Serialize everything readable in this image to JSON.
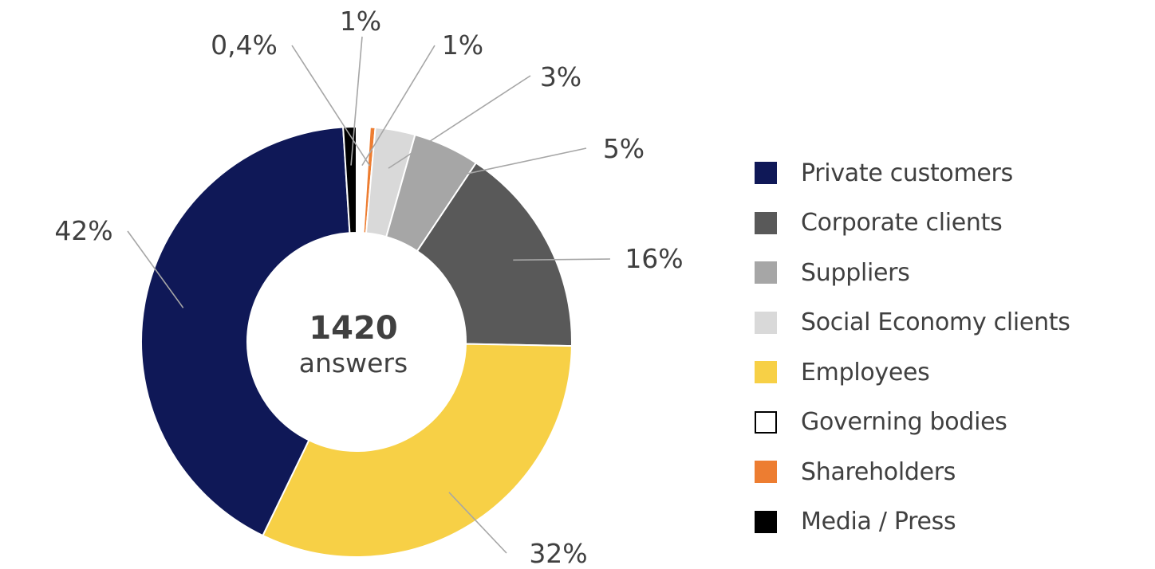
{
  "chart_data": {
    "type": "pie",
    "variant": "donut",
    "center_label": {
      "value": "1420",
      "caption": "answers"
    },
    "slices": [
      {
        "name": "Private customers",
        "value": 42,
        "label": "42%",
        "color": "#0f1857"
      },
      {
        "name": "Corporate clients",
        "value": 16,
        "label": "16%",
        "color": "#595959"
      },
      {
        "name": "Suppliers",
        "value": 5,
        "label": "5%",
        "color": "#a6a6a6"
      },
      {
        "name": "Social Economy clients",
        "value": 3,
        "label": "3%",
        "color": "#d9d9d9"
      },
      {
        "name": "Employees",
        "value": 32,
        "label": "32%",
        "color": "#f7d046"
      },
      {
        "name": "Governing bodies",
        "value": 1,
        "label": "1%",
        "color": "#ffffff"
      },
      {
        "name": "Shareholders",
        "value": 0.4,
        "label": "0,4%",
        "color": "#ed7d31"
      },
      {
        "name": "Media / Press",
        "value": 1,
        "label": "1%",
        "color": "#000000"
      }
    ],
    "legend": {
      "position": "right",
      "items": [
        "Private customers",
        "Corporate clients",
        "Suppliers",
        "Social Economy clients",
        "Employees",
        "Governing bodies",
        "Shareholders",
        "Media / Press"
      ]
    }
  }
}
